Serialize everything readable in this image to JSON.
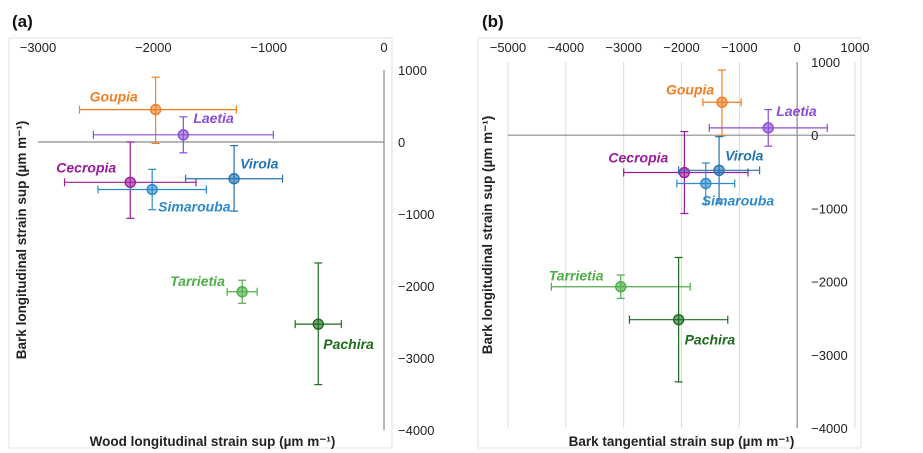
{
  "chart_data": [
    {
      "type": "scatter",
      "panel_label": "(a)",
      "xlabel": "Wood longitudinal strain sup (µm m⁻¹)",
      "ylabel": "Bark longitudinal strain sup (µm m⁻¹)",
      "xlim": [
        -3000,
        0
      ],
      "ylim": [
        -4000,
        1000
      ],
      "x_ticks": [
        -3000,
        -2000,
        -1000,
        0
      ],
      "y_ticks": [
        1000,
        0,
        -1000,
        -2000,
        -3000,
        -4000
      ],
      "x_tick_labels": [
        "−3000",
        "−2000",
        "−1000",
        "0"
      ],
      "y_tick_labels": [
        "1000",
        "0",
        "−1000",
        "−2000",
        "−3000",
        "−4000"
      ],
      "grid": false,
      "points": [
        {
          "name": "Goupia",
          "x": -1980,
          "y": 450,
          "xerr": [
            660,
            700
          ],
          "yerr": [
            470,
            450
          ],
          "color": "#F07F23"
        },
        {
          "name": "Laetia",
          "x": -1740,
          "y": 100,
          "xerr": [
            780,
            780
          ],
          "yerr": [
            250,
            250
          ],
          "color": "#8B4DD6"
        },
        {
          "name": "Cecropia",
          "x": -2200,
          "y": -560,
          "xerr": [
            570,
            570
          ],
          "yerr": [
            500,
            560
          ],
          "color": "#9B1C9B"
        },
        {
          "name": "Virola",
          "x": -1300,
          "y": -510,
          "xerr": [
            420,
            420
          ],
          "yerr": [
            450,
            460
          ],
          "color": "#2374B0"
        },
        {
          "name": "Simarouba",
          "x": -2010,
          "y": -660,
          "xerr": [
            470,
            470
          ],
          "yerr": [
            280,
            280
          ],
          "color": "#2C8ACD"
        },
        {
          "name": "Tarrietia",
          "x": -1230,
          "y": -2080,
          "xerr": [
            130,
            130
          ],
          "yerr": [
            160,
            160
          ],
          "color": "#4FAE48"
        },
        {
          "name": "Pachira",
          "x": -570,
          "y": -2530,
          "xerr": [
            200,
            200
          ],
          "yerr": [
            840,
            850
          ],
          "color": "#1E6B1E"
        }
      ]
    },
    {
      "type": "scatter",
      "panel_label": "(b)",
      "xlabel": "Bark tangential strain sup (µm m⁻¹)",
      "ylabel": "Bark longitudinal strain sup (µm m⁻¹)",
      "xlim": [
        -5000,
        1000
      ],
      "ylim": [
        -4000,
        1000
      ],
      "x_ticks": [
        -5000,
        -4000,
        -3000,
        -2000,
        -1000,
        0,
        1000
      ],
      "y_ticks": [
        1000,
        0,
        -1000,
        -2000,
        -3000,
        -4000
      ],
      "x_tick_labels": [
        "−5000",
        "−4000",
        "−3000",
        "−2000",
        "−1000",
        "0",
        "1000"
      ],
      "y_tick_labels": [
        "1000",
        "0",
        "−1000",
        "−2000",
        "−3000",
        "−4000"
      ],
      "grid": true,
      "points": [
        {
          "name": "Goupia",
          "x": -1300,
          "y": 450,
          "xerr": [
            330,
            330
          ],
          "yerr": [
            460,
            440
          ],
          "color": "#F07F23"
        },
        {
          "name": "Laetia",
          "x": -500,
          "y": 100,
          "xerr": [
            1020,
            1020
          ],
          "yerr": [
            250,
            250
          ],
          "color": "#8B4DD6"
        },
        {
          "name": "Cecropia",
          "x": -1950,
          "y": -510,
          "xerr": [
            1050,
            1100
          ],
          "yerr": [
            560,
            560
          ],
          "color": "#9B1C9B"
        },
        {
          "name": "Virola",
          "x": -1350,
          "y": -480,
          "xerr": [
            700,
            700
          ],
          "yerr": [
            450,
            460
          ],
          "color": "#2374B0"
        },
        {
          "name": "Simarouba",
          "x": -1580,
          "y": -660,
          "xerr": [
            500,
            500
          ],
          "yerr": [
            280,
            280
          ],
          "color": "#2C8ACD"
        },
        {
          "name": "Tarrietia",
          "x": -3050,
          "y": -2070,
          "xerr": [
            1200,
            1200
          ],
          "yerr": [
            160,
            160
          ],
          "color": "#4FAE48"
        },
        {
          "name": "Pachira",
          "x": -2050,
          "y": -2520,
          "xerr": [
            850,
            850
          ],
          "yerr": [
            850,
            850
          ],
          "color": "#1E6B1E"
        }
      ]
    }
  ]
}
